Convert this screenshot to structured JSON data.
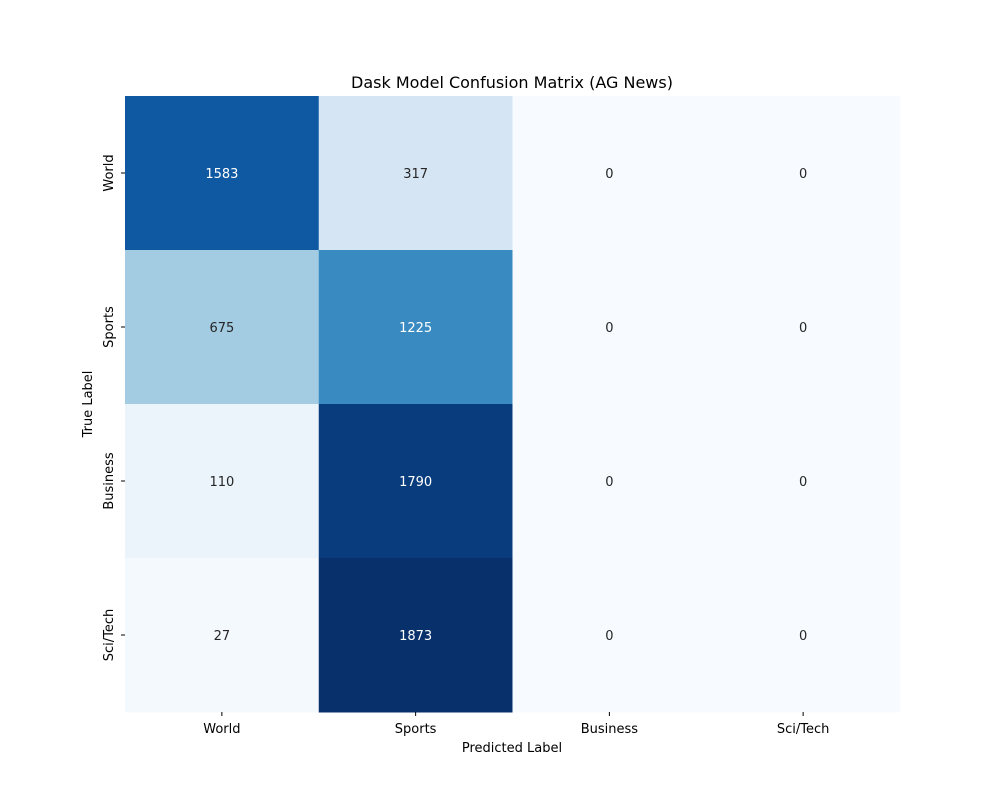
{
  "chart_data": {
    "type": "heatmap",
    "title": "Dask Model Confusion Matrix (AG News)",
    "xlabel": "Predicted Label",
    "ylabel": "True Label",
    "x_categories": [
      "World",
      "Sports",
      "Business",
      "Sci/Tech"
    ],
    "y_categories": [
      "World",
      "Sports",
      "Business",
      "Sci/Tech"
    ],
    "values": [
      [
        1583,
        317,
        0,
        0
      ],
      [
        675,
        1225,
        0,
        0
      ],
      [
        110,
        1790,
        0,
        0
      ],
      [
        27,
        1873,
        0,
        0
      ]
    ],
    "colormap": "Blues",
    "vmin": 0,
    "vmax": 1873,
    "annotations": true,
    "colorbar": false
  }
}
